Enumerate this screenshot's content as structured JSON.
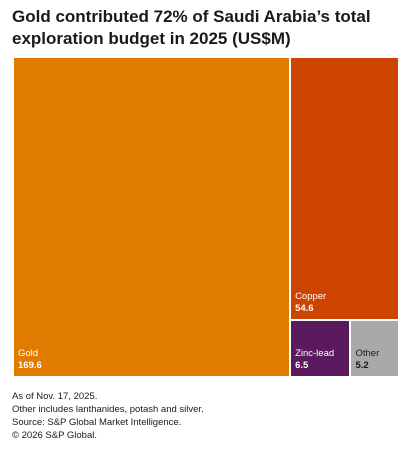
{
  "title_lines": [
    "Gold contributed 72% of Saudi Arabia’s total",
    "exploration budget in 2025 (US$M)"
  ],
  "chart_data": {
    "type": "treemap",
    "title": "Gold contributed 72% of Saudi Arabia’s total exploration budget in 2025 (US$M)",
    "items": [
      {
        "name": "Gold",
        "value": 169.6,
        "value_label": "169.6",
        "color": "#E07B00",
        "text_color": "#ffffff"
      },
      {
        "name": "Copper",
        "value": 54.6,
        "value_label": "54.6",
        "color": "#CC4400",
        "text_color": "#ffffff"
      },
      {
        "name": "Zinc-lead",
        "value": 6.5,
        "value_label": "6.5",
        "color": "#5B1A5E",
        "text_color": "#ffffff"
      },
      {
        "name": "Other",
        "value": 5.2,
        "value_label": "5.2",
        "color": "#A9A9A9",
        "text_color": "#1a1a1a"
      }
    ]
  },
  "notes": [
    "As of Nov. 17, 2025.",
    "Other includes lanthanides, potash and silver.",
    "Source: S&P Global Market Intelligence.",
    "© 2026 S&P Global."
  ]
}
